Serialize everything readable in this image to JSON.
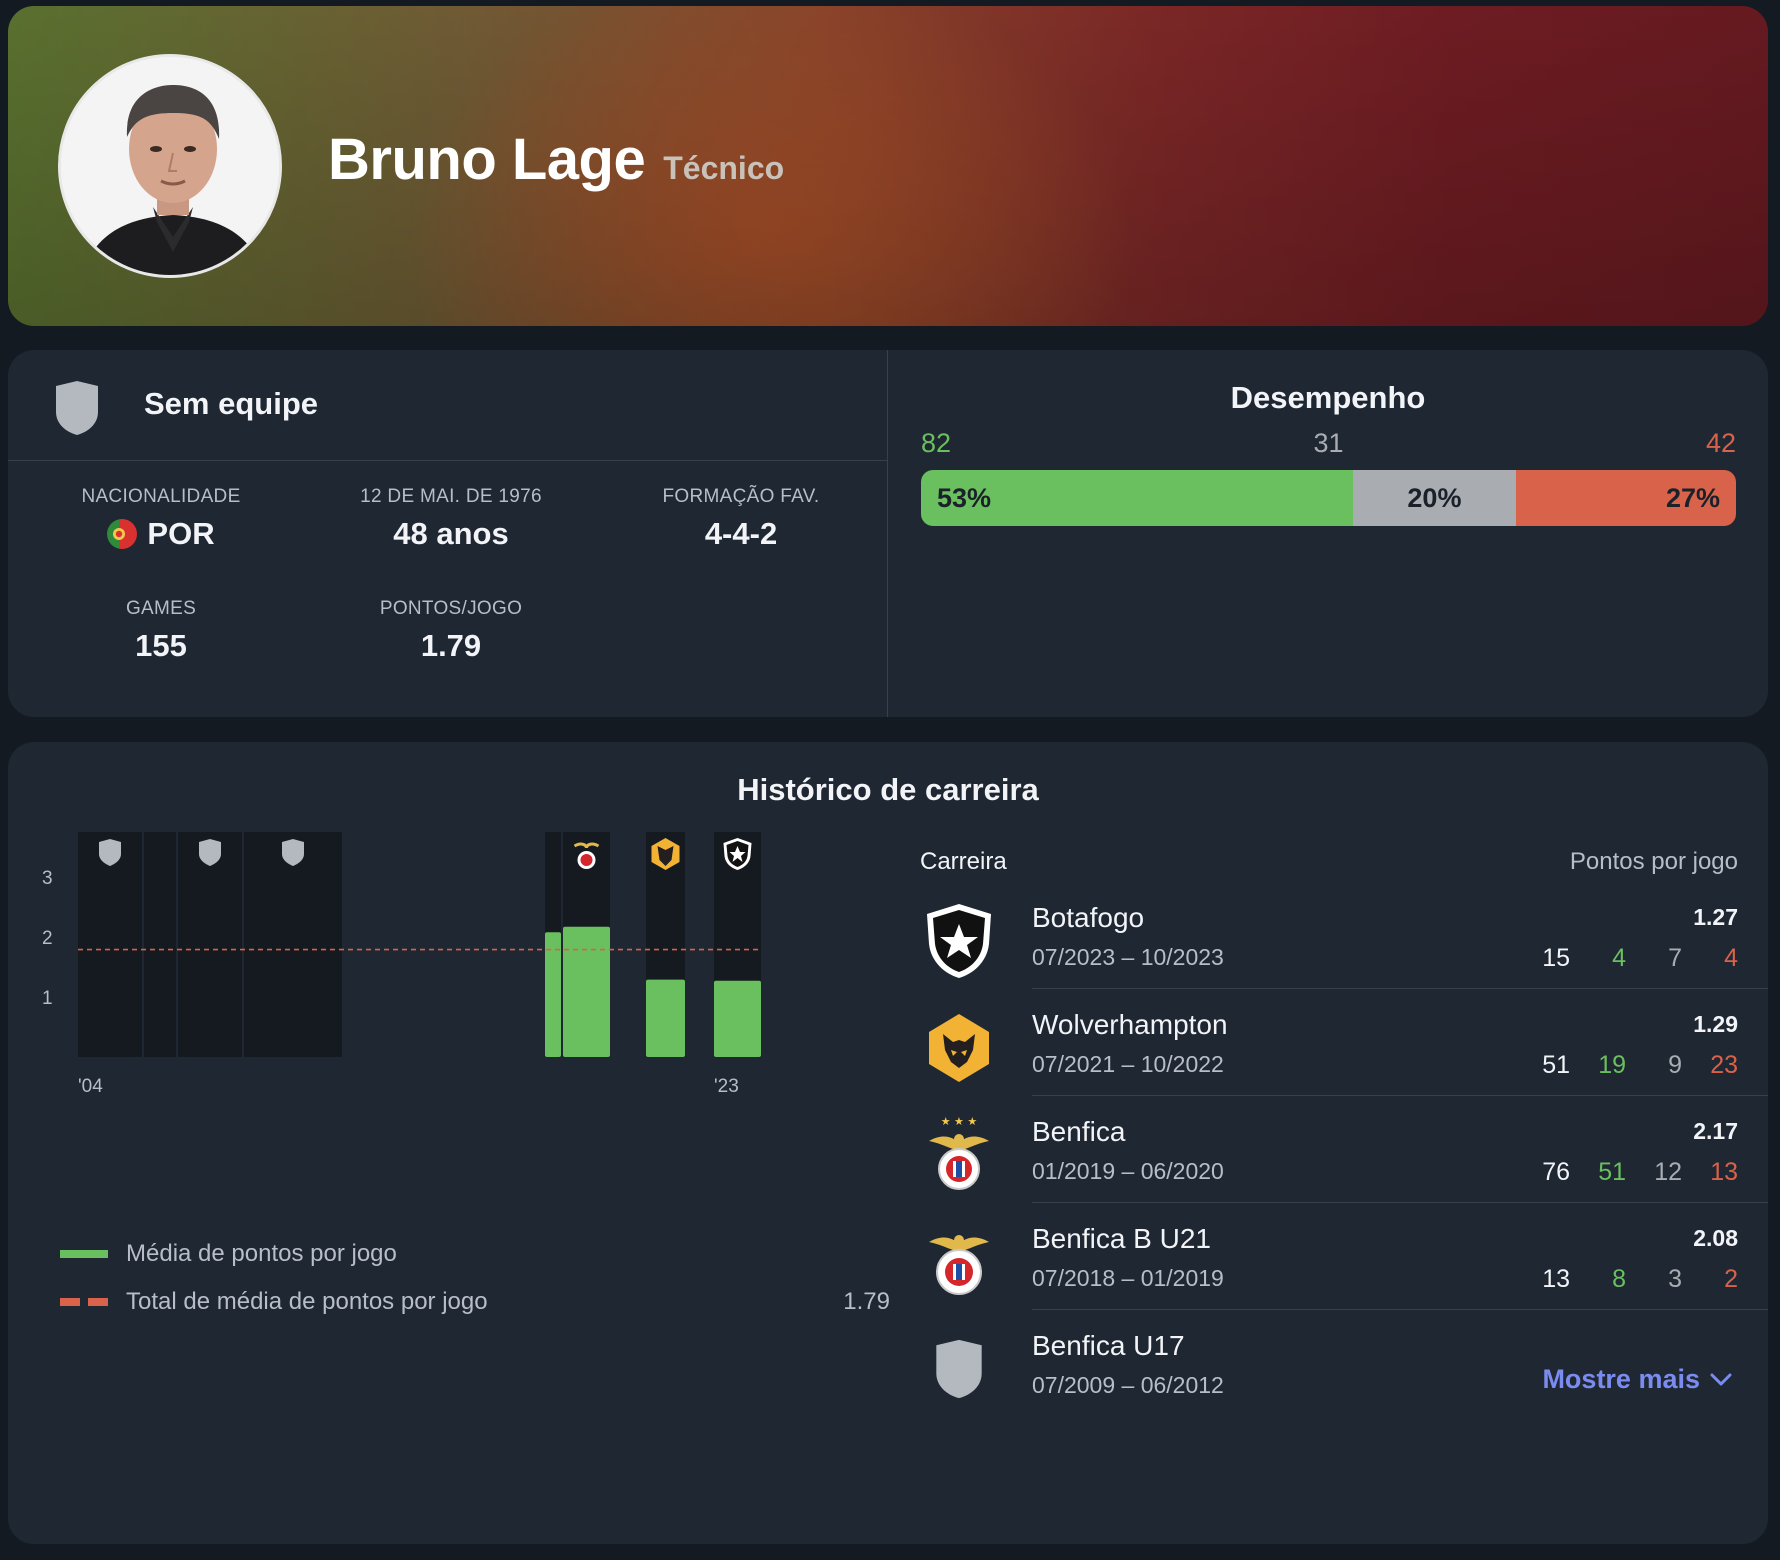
{
  "header": {
    "name": "Bruno Lage",
    "role": "Técnico",
    "avatar_icon": "person-photo-icon"
  },
  "team": {
    "name": "Sem equipe",
    "icon": "shield-icon"
  },
  "stats": [
    {
      "label": "NACIONALIDADE",
      "value": "POR",
      "flag": "portugal-flag-icon"
    },
    {
      "label": "12 DE MAI. DE 1976",
      "value": "48 anos"
    },
    {
      "label": "FORMAÇÃO FAV.",
      "value": "4-4-2"
    },
    {
      "label": "GAMES",
      "value": "155"
    },
    {
      "label": "PONTOS/JOGO",
      "value": "1.79"
    }
  ],
  "performance": {
    "title": "Desempenho",
    "wins": "82",
    "draws": "31",
    "losses": "42",
    "win_pct": "53%",
    "draw_pct": "20%",
    "loss_pct": "27%",
    "win_frac": 0.53,
    "draw_frac": 0.2,
    "loss_frac": 0.27,
    "colors": {
      "win": "#6abf5f",
      "draw": "#a9acb1",
      "loss": "#d8624a"
    }
  },
  "career": {
    "title": "Histórico de carreira",
    "list_header": "Carreira",
    "list_header_right": "Pontos por jogo",
    "items": [
      {
        "club": "Botafogo",
        "dates": "07/2023 – 10/2023",
        "ppg": "1.27",
        "games": "15",
        "w": "4",
        "d": "7",
        "l": "4",
        "icon": "botafogo-crest-icon"
      },
      {
        "club": "Wolverhampton",
        "dates": "07/2021 – 10/2022",
        "ppg": "1.29",
        "games": "51",
        "w": "19",
        "d": "9",
        "l": "23",
        "icon": "wolves-crest-icon"
      },
      {
        "club": "Benfica",
        "dates": "01/2019 – 06/2020",
        "ppg": "2.17",
        "games": "76",
        "w": "51",
        "d": "12",
        "l": "13",
        "icon": "benfica-crest-icon"
      },
      {
        "club": "Benfica B U21",
        "dates": "07/2018 – 01/2019",
        "ppg": "2.08",
        "games": "13",
        "w": "8",
        "d": "3",
        "l": "2",
        "icon": "benfica-crest-icon"
      },
      {
        "club": "Benfica U17",
        "dates": "07/2009 – 06/2012",
        "ppg": "",
        "games": "",
        "w": "",
        "d": "",
        "l": "",
        "icon": "shield-icon"
      }
    ],
    "show_more": "Mostre mais"
  },
  "chart_data": {
    "type": "bar",
    "y_ticks": [
      "1",
      "2",
      "3"
    ],
    "ylim": [
      0,
      3.75
    ],
    "x_start_label": "'04",
    "x_end_label": "'23",
    "average_ppg": 1.79,
    "bars": [
      {
        "icon": "shield-icon",
        "value": null
      },
      {
        "icon": "",
        "value": null
      },
      {
        "icon": "shield-icon",
        "value": null
      },
      {
        "icon": "shield-icon",
        "value": null
      },
      {
        "icon": "",
        "value": 2.08
      },
      {
        "icon": "benfica-crest-icon",
        "value": 2.17
      },
      {
        "icon": "wolves-crest-icon",
        "value": 1.29
      },
      {
        "icon": "botafogo-crest-icon",
        "value": 1.27
      }
    ],
    "legend": [
      {
        "label": "Média de pontos por jogo",
        "value": ""
      },
      {
        "label": "Total de média de pontos por jogo",
        "value": "1.79"
      }
    ],
    "colors": {
      "bar": "#6abf5f",
      "average": "#d8624a",
      "column": "#151a21"
    }
  }
}
